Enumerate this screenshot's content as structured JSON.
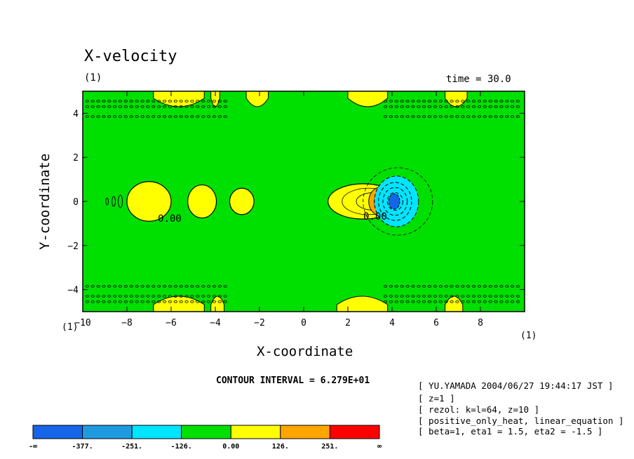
{
  "chart_data": {
    "type": "contour",
    "title": "X-velocity",
    "panel_label": "(1)",
    "time_label": "time = 30.0",
    "xlabel": "X-coordinate",
    "ylabel": "Y-coordinate",
    "xlim": [
      -10,
      10
    ],
    "ylim": [
      -5,
      5
    ],
    "xticks": [
      -10,
      -8,
      -6,
      -4,
      -2,
      0,
      2,
      4,
      6,
      8
    ],
    "yticks": [
      -4,
      -2,
      0,
      2,
      4
    ],
    "x_unit_label": "(1)",
    "y_unit_label": "(1)",
    "contour_interval_label": "CONTOUR INTERVAL = 6.279E+01",
    "contour_zero_label": "0.00",
    "features": [
      {
        "kind": "positive",
        "x": -7.0,
        "y": 0,
        "rx": 1.0,
        "ry": 0.9
      },
      {
        "kind": "positive",
        "x": -4.6,
        "y": 0,
        "rx": 0.65,
        "ry": 0.75
      },
      {
        "kind": "positive",
        "x": -2.8,
        "y": 0,
        "rx": 0.55,
        "ry": 0.6
      },
      {
        "kind": "positive",
        "x": 2.7,
        "y": 0,
        "rx": 1.6,
        "ry": 0.8
      },
      {
        "kind": "positive-peak",
        "x": 3.5,
        "y": 0,
        "rx": 0.3,
        "ry": 0.4
      },
      {
        "kind": "negative",
        "x": 4.2,
        "y": 0,
        "rx": 1.0,
        "ry": 1.15
      },
      {
        "kind": "negative-peak",
        "x": 4.1,
        "y": 0,
        "rx": 0.25,
        "ry": 0.35
      }
    ],
    "colorbar": {
      "labels": [
        "-∞",
        "-377.",
        "-251.",
        "-126.",
        "0.00",
        "126.",
        "251.",
        "∞"
      ],
      "colors": [
        "#1565e8",
        "#1e9be0",
        "#00e5ff",
        "#00e000",
        "#ffff00",
        "#ffa500",
        "#ff0000"
      ]
    },
    "background_color": "#00e000"
  },
  "notes": [
    "[ YU.YAMADA 2004/06/27 19:44:17 JST ]",
    "[ z=1 ]",
    "[ rezol: k=l=64, z=10 ]",
    "[ positive_only_heat, linear_equation ]",
    "[ beta=1, eta1 = 1.5, eta2 = -1.5 ]"
  ]
}
